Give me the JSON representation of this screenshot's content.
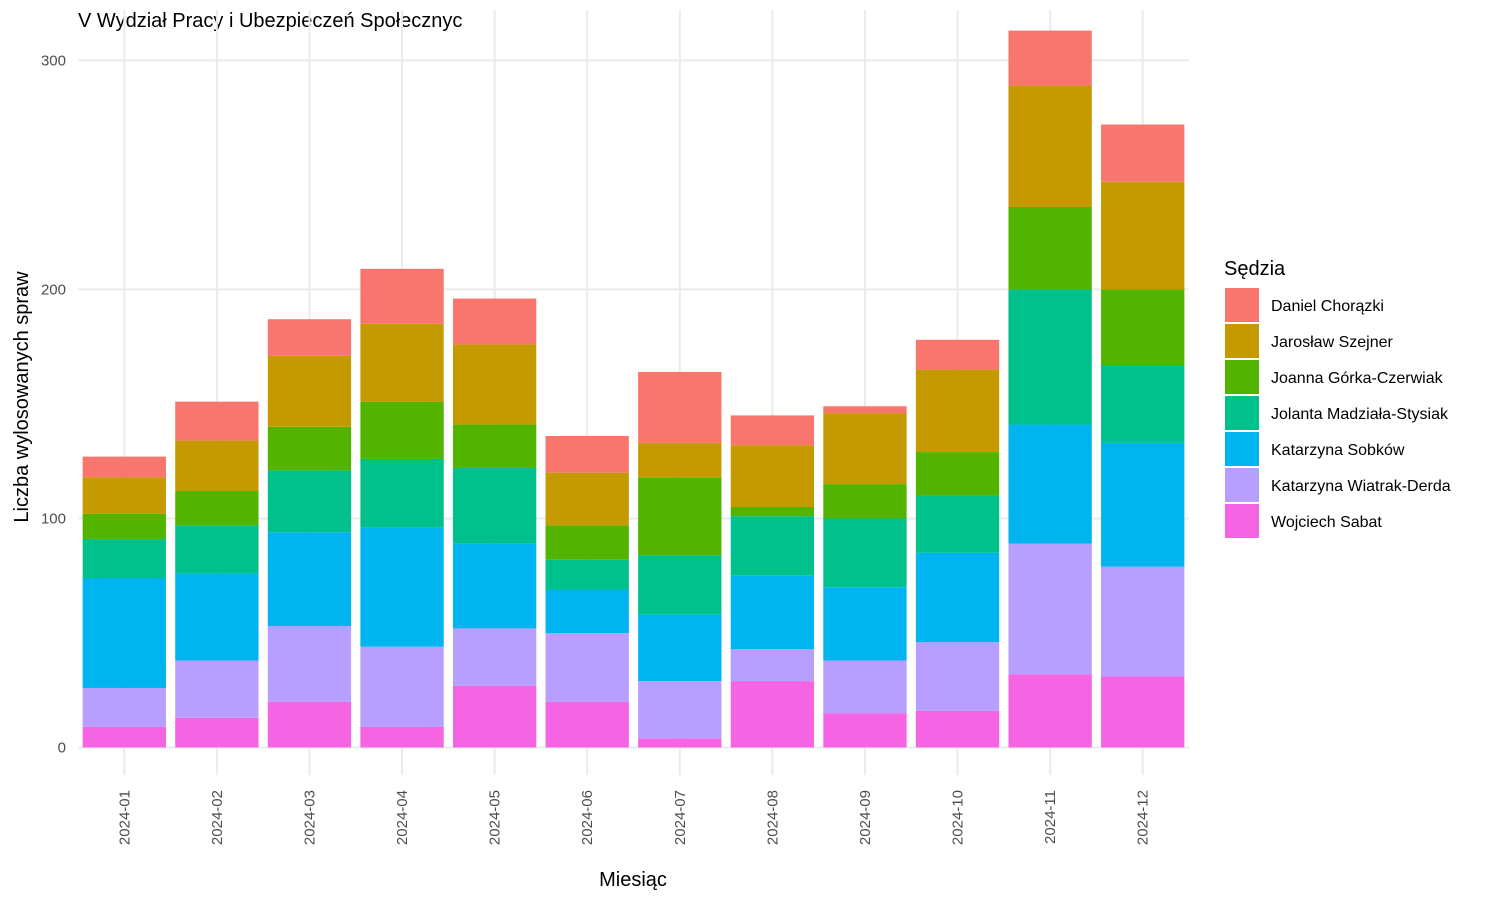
{
  "chart_data": {
    "type": "bar",
    "stacked": true,
    "title": "V Wydział Pracy i Ubezpieczeń Społecznyc",
    "xlabel": "Miesiąc",
    "ylabel": "Liczba wylosowanych spraw",
    "ylim": [
      -12,
      322
    ],
    "yticks": [
      0,
      100,
      200,
      300
    ],
    "grid": true,
    "legend_placement": "right",
    "legend_title": "Sędzia",
    "categories": [
      "2024-01",
      "2024-02",
      "2024-03",
      "2024-04",
      "2024-05",
      "2024-06",
      "2024-07",
      "2024-08",
      "2024-09",
      "2024-10",
      "2024-11",
      "2024-12"
    ],
    "series": [
      {
        "name": "Wojciech Sabat",
        "color": "#F564E3",
        "values": [
          9,
          13,
          20,
          9,
          27,
          20,
          4,
          29,
          15,
          16,
          32,
          31
        ]
      },
      {
        "name": "Katarzyna Wiatrak-Derda",
        "color": "#B79FFF",
        "values": [
          17,
          25,
          33,
          35,
          25,
          30,
          25,
          14,
          23,
          30,
          57,
          48
        ]
      },
      {
        "name": "Katarzyna Sobków",
        "color": "#00B4EF",
        "values": [
          48,
          38,
          41,
          52,
          37,
          19,
          29,
          32,
          32,
          39,
          52,
          54
        ]
      },
      {
        "name": "Jolanta Madziała-Stysiak",
        "color": "#00C08B",
        "values": [
          17,
          21,
          27,
          30,
          33,
          13,
          26,
          26,
          30,
          25,
          59,
          34
        ]
      },
      {
        "name": "Joanna Górka-Czerwiak",
        "color": "#53B400",
        "values": [
          11,
          15,
          19,
          25,
          19,
          15,
          34,
          4,
          15,
          19,
          36,
          33
        ]
      },
      {
        "name": "Jarosław Szejner",
        "color": "#C49A00",
        "values": [
          16,
          22,
          31,
          34,
          35,
          23,
          15,
          27,
          31,
          36,
          53,
          47
        ]
      },
      {
        "name": "Daniel Chorązki",
        "color": "#F8766D",
        "values": [
          9,
          17,
          16,
          24,
          20,
          16,
          31,
          13,
          3,
          13,
          24,
          25
        ]
      }
    ],
    "legend_order": [
      "Daniel Chorązki",
      "Jarosław Szejner",
      "Joanna Górka-Czerwiak",
      "Jolanta Madziała-Stysiak",
      "Katarzyna Sobków",
      "Katarzyna Wiatrak-Derda",
      "Wojciech Sabat"
    ]
  }
}
